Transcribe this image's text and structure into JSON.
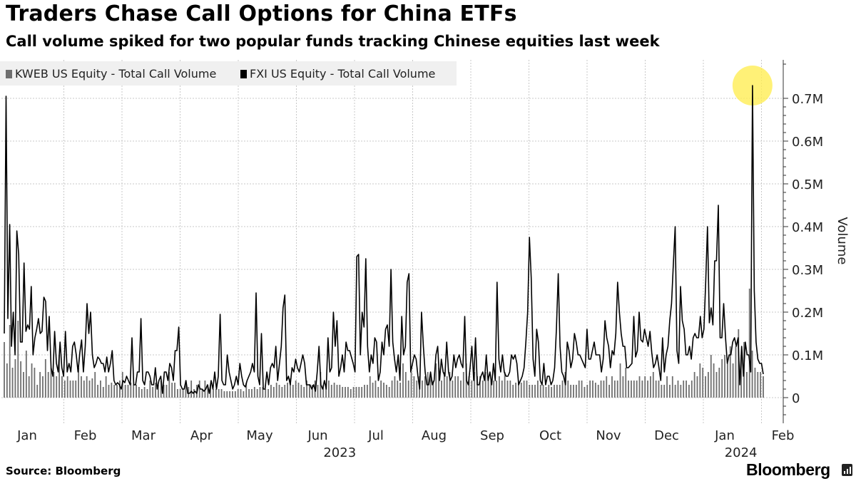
{
  "chart_data": {
    "type": "bar+line",
    "title": "Traders Chase Call Options for China ETFs",
    "subtitle": "Call volume spiked for two popular funds tracking Chinese equities last week",
    "ylabel": "Volume",
    "ylim": [
      -60000,
      790000
    ],
    "yticks": [
      {
        "value": 0,
        "label": "0"
      },
      {
        "value": 100000,
        "label": "0.1M"
      },
      {
        "value": 200000,
        "label": "0.2M"
      },
      {
        "value": 300000,
        "label": "0.3M"
      },
      {
        "value": 400000,
        "label": "0.4M"
      },
      {
        "value": 500000,
        "label": "0.5M"
      },
      {
        "value": 600000,
        "label": "0.6M"
      },
      {
        "value": 700000,
        "label": "0.7M"
      }
    ],
    "months": [
      "Jan",
      "Feb",
      "Mar",
      "Apr",
      "May",
      "Jun",
      "Jul",
      "Aug",
      "Sep",
      "Oct",
      "Nov",
      "Dec",
      "Jan",
      "Feb"
    ],
    "years": [
      {
        "label": "2023",
        "month_index": 5.5
      },
      {
        "label": "2024",
        "month_index": 12.4
      }
    ],
    "series": [
      {
        "name": "KWEB US Equity - Total Call Volume",
        "type": "bar",
        "color": "#6e6e6e",
        "values": [
          130000,
          80000,
          170000,
          70000,
          90000,
          180000,
          85000,
          60000,
          110000,
          50000,
          80000,
          70000,
          30000,
          60000,
          50000,
          90000,
          60000,
          70000,
          60000,
          50000,
          100000,
          50000,
          40000,
          50000,
          40000,
          40000,
          40000,
          70000,
          50000,
          40000,
          50000,
          40000,
          45000,
          60000,
          30000,
          40000,
          25000,
          50000,
          30000,
          35000,
          30000,
          30000,
          40000,
          60000,
          30000,
          30000,
          35000,
          30000,
          30000,
          25000,
          20000,
          25000,
          20000,
          40000,
          25000,
          35000,
          30000,
          40000,
          30000,
          30000,
          60000,
          35000,
          35000,
          20000,
          20000,
          20000,
          40000,
          25000,
          40000,
          20000,
          30000,
          40000,
          20000,
          40000,
          30000,
          30000,
          20000,
          20000,
          20000,
          20000,
          15000,
          15000,
          15000,
          15000,
          15000,
          20000,
          20000,
          15000,
          35000,
          20000,
          20000,
          25000,
          20000,
          25000,
          25000,
          20000,
          20000,
          30000,
          25000,
          35000,
          30000,
          25000,
          30000,
          35000,
          45000,
          30000,
          40000,
          35000,
          30000,
          25000,
          40000,
          30000,
          30000,
          40000,
          30000,
          60000,
          30000,
          30000,
          40000,
          30000,
          35000,
          30000,
          30000,
          25000,
          25000,
          25000,
          20000,
          25000,
          25000,
          25000,
          25000,
          30000,
          30000,
          50000,
          35000,
          40000,
          25000,
          40000,
          35000,
          30000,
          25000,
          40000,
          50000,
          40000,
          35000,
          80000,
          60000,
          40000,
          60000,
          50000,
          40000,
          50000,
          40000,
          50000,
          60000,
          50000,
          40000,
          80000,
          70000,
          40000,
          60000,
          50000,
          60000,
          40000,
          50000,
          50000,
          40000,
          60000,
          80000,
          50000,
          40000,
          60000,
          50000,
          50000,
          40000,
          60000,
          50000,
          40000,
          40000,
          40000,
          50000,
          40000,
          60000,
          40000,
          40000,
          30000,
          35000,
          40000,
          35000,
          40000,
          40000,
          30000,
          30000,
          30000,
          40000,
          30000,
          30000,
          25000,
          30000,
          25000,
          30000,
          30000,
          30000,
          40000,
          60000,
          40000,
          30000,
          30000,
          30000,
          40000,
          40000,
          25000,
          30000,
          40000,
          40000,
          35000,
          30000,
          40000,
          40000,
          50000,
          30000,
          50000,
          40000,
          40000,
          80000,
          50000,
          70000,
          40000,
          40000,
          40000,
          40000,
          50000,
          40000,
          50000,
          40000,
          50000,
          60000,
          40000,
          40000,
          30000,
          30000,
          50000,
          30000,
          50000,
          30000,
          40000,
          30000,
          40000,
          40000,
          30000,
          40000,
          60000,
          50000,
          80000,
          70000,
          50000,
          60000,
          100000,
          80000,
          60000,
          70000,
          90000,
          100000,
          80000,
          120000,
          80000,
          120000,
          160000,
          100000,
          130000,
          60000,
          255000,
          110000,
          70000,
          60000,
          60000,
          50000
        ]
      },
      {
        "name": "FXI US Equity - Total Call Volume",
        "type": "line",
        "color": "#000000",
        "values": [
          150000,
          705000,
          185000,
          405000,
          120000,
          200000,
          100000,
          390000,
          335000,
          130000,
          130000,
          315000,
          155000,
          170000,
          160000,
          260000,
          100000,
          140000,
          160000,
          185000,
          150000,
          155000,
          235000,
          225000,
          110000,
          190000,
          70000,
          50000,
          155000,
          80000,
          60000,
          130000,
          70000,
          50000,
          155000,
          60000,
          80000,
          60000,
          120000,
          130000,
          100000,
          60000,
          105000,
          135000,
          60000,
          120000,
          220000,
          150000,
          200000,
          100000,
          70000,
          80000,
          95000,
          90000,
          80000,
          80000,
          60000,
          95000,
          60000,
          80000,
          110000,
          40000,
          30000,
          35000,
          30000,
          20000,
          40000,
          35000,
          50000,
          40000,
          30000,
          140000,
          30000,
          30000,
          60000,
          60000,
          185000,
          40000,
          30000,
          60000,
          60000,
          50000,
          30000,
          30000,
          70000,
          20000,
          40000,
          50000,
          10000,
          60000,
          60000,
          40000,
          80000,
          70000,
          40000,
          110000,
          110000,
          165000,
          30000,
          20000,
          20000,
          40000,
          10000,
          10000,
          15000,
          10000,
          15000,
          10000,
          30000,
          20000,
          20000,
          15000,
          20000,
          30000,
          10000,
          40000,
          20000,
          60000,
          20000,
          50000,
          195000,
          40000,
          30000,
          30000,
          100000,
          60000,
          40000,
          20000,
          30000,
          50000,
          30000,
          80000,
          50000,
          30000,
          25000,
          40000,
          50000,
          60000,
          80000,
          60000,
          245000,
          50000,
          30000,
          150000,
          20000,
          20000,
          60000,
          30000,
          70000,
          80000,
          70000,
          120000,
          40000,
          80000,
          120000,
          210000,
          240000,
          40000,
          50000,
          30000,
          70000,
          60000,
          90000,
          70000,
          60000,
          80000,
          100000,
          80000,
          30000,
          30000,
          30000,
          20000,
          30000,
          15000,
          60000,
          120000,
          30000,
          20000,
          40000,
          20000,
          140000,
          60000,
          70000,
          200000,
          120000,
          180000,
          50000,
          70000,
          100000,
          60000,
          130000,
          110000,
          110000,
          95000,
          80000,
          60000,
          330000,
          335000,
          100000,
          200000,
          165000,
          325000,
          120000,
          60000,
          100000,
          80000,
          140000,
          130000,
          40000,
          60000,
          130000,
          100000,
          160000,
          170000,
          120000,
          300000,
          130000,
          90000,
          60000,
          100000,
          40000,
          190000,
          100000,
          120000,
          270000,
          290000,
          60000,
          80000,
          100000,
          90000,
          50000,
          20000,
          200000,
          120000,
          60000,
          30000,
          30000,
          60000,
          30000,
          40000,
          100000,
          120000,
          40000,
          90000,
          60000,
          50000,
          130000,
          60000,
          40000,
          50000,
          100000,
          70000,
          90000,
          100000,
          80000,
          70000,
          190000,
          40000,
          30000,
          70000,
          120000,
          40000,
          140000,
          30000,
          30000,
          50000,
          60000,
          40000,
          100000,
          40000,
          60000,
          30000,
          80000,
          40000,
          270000,
          90000,
          60000,
          100000,
          60000,
          50000,
          50000,
          60000,
          100000,
          90000,
          100000,
          80000,
          30000,
          40000,
          50000,
          70000,
          130000,
          200000,
          375000,
          280000,
          90000,
          50000,
          160000,
          130000,
          40000,
          30000,
          80000,
          30000,
          50000,
          50000,
          30000,
          40000,
          70000,
          160000,
          290000,
          120000,
          60000,
          50000,
          30000,
          130000,
          110000,
          70000,
          90000,
          150000,
          130000,
          100000,
          100000,
          90000,
          80000,
          70000,
          160000,
          90000,
          90000,
          110000,
          130000,
          100000,
          100000,
          100000,
          60000,
          90000,
          180000,
          140000,
          120000,
          70000,
          110000,
          100000,
          150000,
          270000,
          200000,
          150000,
          120000,
          120000,
          70000,
          70000,
          75000,
          80000,
          190000,
          95000,
          110000,
          200000,
          135000,
          130000,
          160000,
          140000,
          120000,
          155000,
          105000,
          70000,
          80000,
          100000,
          70000,
          40000,
          140000,
          60000,
          100000,
          120000,
          180000,
          220000,
          310000,
          400000,
          110000,
          80000,
          260000,
          180000,
          160000,
          100000,
          100000,
          120000,
          90000,
          140000,
          150000,
          140000,
          140000,
          190000,
          140000,
          160000,
          270000,
          400000,
          175000,
          210000,
          170000,
          320000,
          320000,
          450000,
          140000,
          140000,
          220000,
          140000,
          80000,
          100000,
          100000,
          130000,
          140000,
          120000,
          140000,
          30000,
          120000,
          50000,
          130000,
          100000,
          100000,
          60000,
          730000,
          250000,
          130000,
          90000,
          80000,
          80000,
          55000
        ]
      }
    ],
    "highlight": {
      "series": "FXI US Equity - Total Call Volume",
      "value": 730000,
      "color": "#ffee55"
    }
  },
  "legend": [
    {
      "label": "KWEB US Equity - Total Call Volume",
      "color": "#6e6e6e"
    },
    {
      "label": "FXI US Equity - Total Call Volume",
      "color": "#000000"
    }
  ],
  "footer": {
    "source": "Source: Bloomberg",
    "brand": "Bloomberg"
  }
}
